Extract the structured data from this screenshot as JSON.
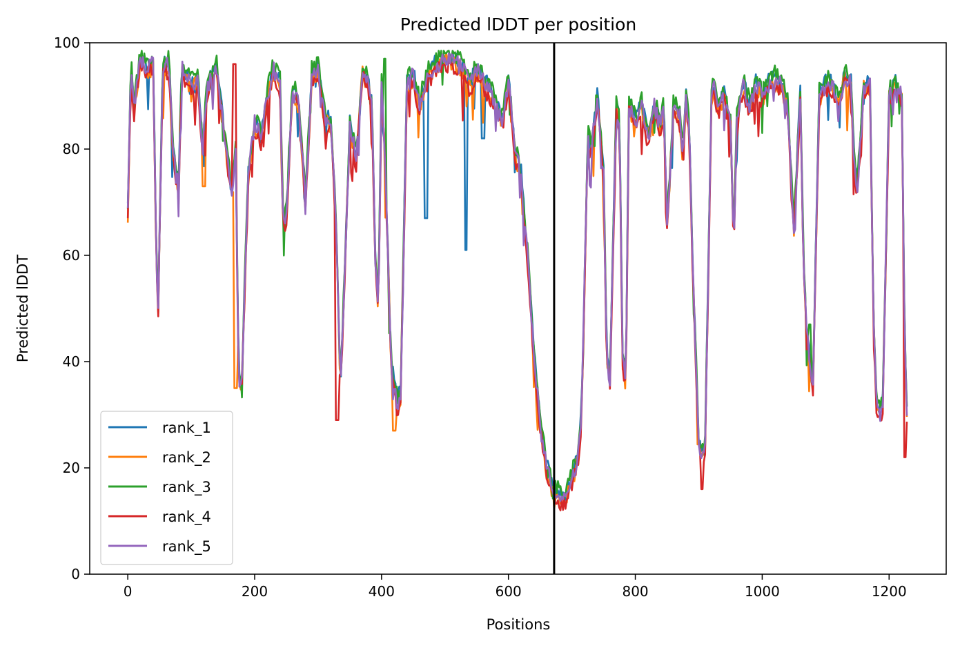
{
  "chart_data": {
    "type": "line",
    "title": "Predicted lDDT per position",
    "xlabel": "Positions",
    "ylabel": "Predicted lDDT",
    "xlim": [
      -60,
      1290
    ],
    "ylim": [
      0,
      100
    ],
    "xticks": [
      0,
      200,
      400,
      600,
      800,
      1000,
      1200
    ],
    "yticks": [
      0,
      20,
      40,
      60,
      80,
      100
    ],
    "grid": false,
    "legend_position": "lower-left",
    "vline_x": 672,
    "vline_color": "#000000",
    "base_profile": {
      "x": [
        0,
        5,
        10,
        20,
        30,
        40,
        45,
        48,
        55,
        65,
        70,
        80,
        85,
        90,
        100,
        110,
        118,
        125,
        130,
        140,
        150,
        160,
        165,
        170,
        175,
        180,
        190,
        200,
        210,
        220,
        230,
        240,
        245,
        250,
        260,
        270,
        280,
        290,
        300,
        310,
        320,
        325,
        330,
        335,
        340,
        350,
        360,
        370,
        380,
        385,
        390,
        395,
        400,
        405,
        410,
        415,
        420,
        425,
        430,
        440,
        450,
        460,
        470,
        480,
        490,
        500,
        510,
        520,
        530,
        540,
        550,
        560,
        570,
        580,
        590,
        600,
        610,
        620,
        630,
        640,
        650,
        660,
        670,
        680,
        690,
        700,
        705,
        710,
        715,
        720,
        725,
        730,
        740,
        750,
        755,
        760,
        770,
        775,
        780,
        785,
        790,
        800,
        810,
        820,
        830,
        840,
        845,
        850,
        860,
        870,
        875,
        880,
        885,
        890,
        900,
        905,
        910,
        920,
        925,
        930,
        940,
        950,
        955,
        960,
        970,
        980,
        990,
        1000,
        1010,
        1020,
        1030,
        1040,
        1050,
        1060,
        1065,
        1070,
        1080,
        1090,
        1100,
        1110,
        1120,
        1130,
        1140,
        1145,
        1150,
        1160,
        1170,
        1175,
        1180,
        1185,
        1190,
        1200,
        1210,
        1220,
        1225,
        1229
      ],
      "y": [
        68,
        95,
        88,
        97,
        95,
        96,
        60,
        50,
        95,
        96,
        82,
        72,
        96,
        94,
        92,
        93,
        80,
        92,
        93,
        95,
        85,
        75,
        72,
        80,
        35,
        38,
        75,
        85,
        82,
        90,
        95,
        92,
        65,
        68,
        92,
        88,
        70,
        94,
        95,
        86,
        85,
        75,
        60,
        35,
        50,
        85,
        78,
        95,
        92,
        88,
        60,
        50,
        92,
        80,
        60,
        40,
        35,
        32,
        34,
        92,
        94,
        88,
        93,
        95,
        96,
        97,
        97,
        96,
        95,
        92,
        95,
        93,
        91,
        88,
        85,
        93,
        80,
        75,
        60,
        42,
        28,
        20,
        16,
        15,
        14,
        18,
        20,
        22,
        30,
        55,
        82,
        80,
        90,
        75,
        40,
        37,
        88,
        85,
        40,
        36,
        88,
        85,
        88,
        82,
        88,
        84,
        88,
        65,
        88,
        86,
        78,
        90,
        84,
        60,
        25,
        22,
        24,
        90,
        92,
        88,
        90,
        85,
        62,
        85,
        92,
        88,
        92,
        90,
        92,
        93,
        92,
        88,
        65,
        90,
        60,
        45,
        36,
        90,
        92,
        92,
        88,
        94,
        92,
        78,
        72,
        92,
        92,
        50,
        32,
        30,
        32,
        90,
        92,
        90,
        40,
        28
      ]
    },
    "series": [
      {
        "name": "rank_1",
        "color": "#1f77b4",
        "offset": 0.6,
        "spike_at": [
          533,
          560,
          470
        ],
        "spike_val": [
          61,
          82,
          67
        ]
      },
      {
        "name": "rank_2",
        "color": "#ff7f0e",
        "offset": -0.6,
        "spike_at": [
          120,
          170,
          420
        ],
        "spike_val": [
          73,
          35,
          27
        ]
      },
      {
        "name": "rank_3",
        "color": "#2ca02c",
        "offset": 1.2,
        "spike_at": [
          405,
          1075
        ],
        "spike_val": [
          97,
          47
        ]
      },
      {
        "name": "rank_4",
        "color": "#d62728",
        "offset": -1.2,
        "spike_at": [
          168,
          905,
          1225,
          330
        ],
        "spike_val": [
          96,
          16,
          22,
          29
        ]
      },
      {
        "name": "rank_5",
        "color": "#9467bd",
        "offset": 0.0,
        "spike_at": [],
        "spike_val": []
      }
    ]
  }
}
